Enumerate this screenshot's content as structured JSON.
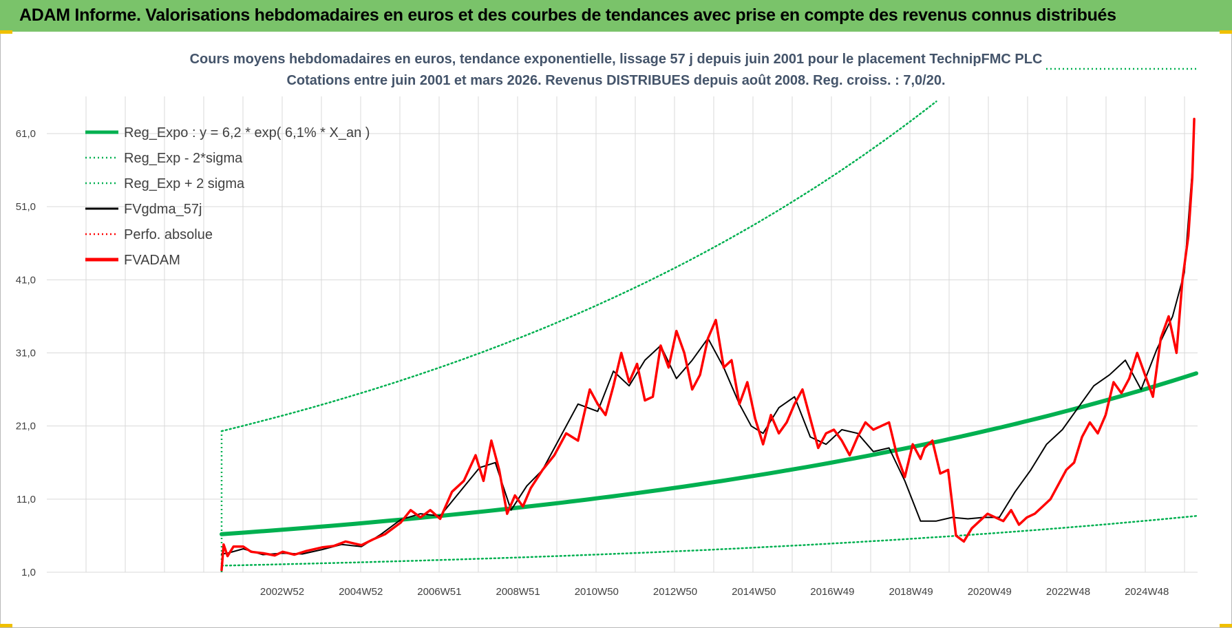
{
  "banner": {
    "title": "ADAM Informe. Valorisations hebdomadaires en euros et des courbes de tendances avec prise en compte des revenus connus distribués"
  },
  "chart_data": {
    "type": "line",
    "title": "Cours moyens hebdomadaires en euros, tendance exponentielle, lissage 57 j depuis juin 2001 pour le placement TechnipFMC PLC",
    "subtitle": "Cotations entre juin 2001 et mars 2026. Revenus DISTRIBUES depuis août 2008. Reg. croiss. : 7,0/20.",
    "ylim": [
      1,
      68
    ],
    "y_ticks": [
      "1,0",
      "11,0",
      "21,0",
      "31,0",
      "41,0",
      "51,0",
      "61,0"
    ],
    "x_ticks": [
      "2002W52",
      "2004W52",
      "2006W51",
      "2008W51",
      "2010W50",
      "2012W50",
      "2014W50",
      "2016W49",
      "2018W49",
      "2020W49",
      "2022W48",
      "2024W48"
    ],
    "x_range": [
      2001.45,
      2026.2
    ],
    "grid": true,
    "legend_position": "top-left",
    "series": [
      {
        "name": "Reg_Expo : y = 6,2 * exp( 6,1% *  X_an )",
        "color": "#00b050",
        "style": "solid-thick",
        "x": [
          2001.45,
          2026.2
        ],
        "y": [
          6.2,
          28.2
        ],
        "curve": "exponential"
      },
      {
        "name": "Reg_Exp - 2*sigma",
        "color": "#00b050",
        "style": "dotted",
        "x": [
          2001.45,
          2026.2
        ],
        "y": [
          1.9,
          8.7
        ],
        "curve": "exponential"
      },
      {
        "name": "Reg_Exp + 2 sigma",
        "color": "#00b050",
        "style": "dotted",
        "x": [
          2001.45,
          2019.6
        ],
        "y": [
          20.3,
          65.4
        ],
        "curve": "exponential"
      },
      {
        "name": "FVgdma_57j",
        "color": "#000000",
        "style": "solid",
        "x": [
          2001.45,
          2001.6,
          2002.0,
          2002.5,
          2003.0,
          2003.5,
          2004.0,
          2004.5,
          2005.0,
          2005.5,
          2006.0,
          2006.5,
          2007.0,
          2007.5,
          2008.0,
          2008.4,
          2008.8,
          2009.2,
          2009.6,
          2010.0,
          2010.5,
          2011.0,
          2011.4,
          2011.8,
          2012.2,
          2012.6,
          2013.0,
          2013.4,
          2013.8,
          2014.2,
          2014.6,
          2014.9,
          2015.2,
          2015.6,
          2016.0,
          2016.4,
          2016.8,
          2017.2,
          2017.6,
          2018.0,
          2018.4,
          2018.8,
          2019.2,
          2019.6,
          2020.0,
          2020.4,
          2020.8,
          2021.2,
          2021.6,
          2022.0,
          2022.4,
          2022.8,
          2023.2,
          2023.6,
          2024.0,
          2024.4,
          2024.8,
          2025.2,
          2025.6,
          2025.9,
          2026.1
        ],
        "y": [
          3.5,
          3.6,
          4.2,
          3.4,
          3.6,
          3.5,
          4.1,
          4.8,
          4.5,
          6.2,
          8.2,
          9.0,
          8.7,
          12.0,
          15.3,
          16.0,
          9.5,
          12.8,
          15.0,
          19.0,
          24.0,
          23.0,
          28.5,
          26.5,
          30.0,
          32.0,
          27.5,
          30.0,
          33.0,
          29.0,
          24.0,
          21.0,
          20.0,
          23.5,
          25.0,
          19.5,
          18.5,
          20.5,
          20.0,
          17.5,
          18.0,
          13.5,
          8.0,
          8.0,
          8.5,
          8.3,
          8.5,
          8.5,
          12.0,
          15.0,
          18.5,
          20.5,
          23.5,
          26.5,
          28.0,
          30.0,
          26.0,
          31.5,
          36.0,
          42.0,
          56.0
        ]
      },
      {
        "name": "Perfo. absolue",
        "color": "#ff0000",
        "style": "dotted",
        "x": [],
        "y": []
      },
      {
        "name": "FVADAM",
        "color": "#ff0000",
        "style": "solid-thick",
        "x": [
          2001.45,
          2001.5,
          2001.6,
          2001.75,
          2002.0,
          2002.2,
          2002.5,
          2002.8,
          2003.0,
          2003.3,
          2003.6,
          2004.0,
          2004.3,
          2004.6,
          2005.0,
          2005.3,
          2005.6,
          2006.0,
          2006.25,
          2006.5,
          2006.75,
          2007.0,
          2007.3,
          2007.6,
          2007.9,
          2008.1,
          2008.3,
          2008.5,
          2008.7,
          2008.9,
          2009.1,
          2009.3,
          2009.6,
          2009.9,
          2010.2,
          2010.5,
          2010.8,
          2011.0,
          2011.2,
          2011.4,
          2011.6,
          2011.8,
          2012.0,
          2012.2,
          2012.4,
          2012.6,
          2012.8,
          2013.0,
          2013.2,
          2013.4,
          2013.6,
          2013.8,
          2014.0,
          2014.2,
          2014.4,
          2014.6,
          2014.8,
          2015.0,
          2015.2,
          2015.4,
          2015.6,
          2015.8,
          2016.0,
          2016.2,
          2016.4,
          2016.6,
          2016.8,
          2017.0,
          2017.2,
          2017.4,
          2017.6,
          2017.8,
          2018.0,
          2018.2,
          2018.4,
          2018.6,
          2018.8,
          2019.0,
          2019.2,
          2019.3,
          2019.5,
          2019.7,
          2019.9,
          2020.1,
          2020.3,
          2020.5,
          2020.7,
          2020.9,
          2021.1,
          2021.3,
          2021.5,
          2021.7,
          2021.9,
          2022.1,
          2022.3,
          2022.5,
          2022.7,
          2022.9,
          2023.1,
          2023.3,
          2023.5,
          2023.7,
          2023.9,
          2024.1,
          2024.3,
          2024.5,
          2024.7,
          2024.9,
          2025.1,
          2025.3,
          2025.5,
          2025.7,
          2025.85,
          2026.0,
          2026.1,
          2026.15
        ],
        "y": [
          1.3,
          4.8,
          3.2,
          4.5,
          4.5,
          3.8,
          3.6,
          3.3,
          3.8,
          3.4,
          3.9,
          4.4,
          4.6,
          5.2,
          4.7,
          5.5,
          6.2,
          7.8,
          9.5,
          8.5,
          9.5,
          8.3,
          12.0,
          13.5,
          17.0,
          13.5,
          19.0,
          15.0,
          9.0,
          11.5,
          10.0,
          12.5,
          15.0,
          17.0,
          20.0,
          19.0,
          26.0,
          24.0,
          22.5,
          26.5,
          31.0,
          27.0,
          29.5,
          24.5,
          25.0,
          32.0,
          29.0,
          34.0,
          31.0,
          26.0,
          28.0,
          33.0,
          35.5,
          29.0,
          30.0,
          24.0,
          27.0,
          22.0,
          18.5,
          22.5,
          20.0,
          21.5,
          24.0,
          26.0,
          22.0,
          18.0,
          20.0,
          20.5,
          19.0,
          17.0,
          19.5,
          21.5,
          20.5,
          21.0,
          21.5,
          17.0,
          14.0,
          18.5,
          16.5,
          18.0,
          19.0,
          14.5,
          15.0,
          6.0,
          5.2,
          7.0,
          8.0,
          9.0,
          8.5,
          8.0,
          9.5,
          7.5,
          8.5,
          9.0,
          10.0,
          11.0,
          13.0,
          15.0,
          16.0,
          19.5,
          21.5,
          20.0,
          22.5,
          27.0,
          25.5,
          27.5,
          31.0,
          28.0,
          25.0,
          33.0,
          36.0,
          31.0,
          41.0,
          47.0,
          55.0,
          63.0
        ]
      }
    ]
  }
}
